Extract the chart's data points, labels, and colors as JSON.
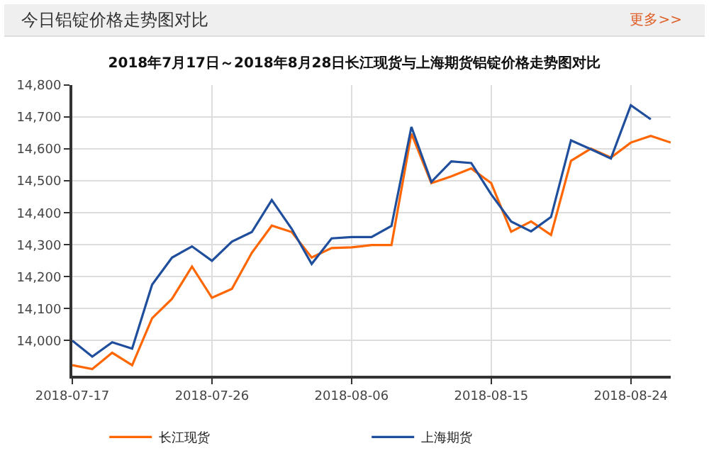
{
  "chart_data": {
    "type": "line",
    "title": "今日铝锭价格走势图对比",
    "subtitle": "2018年7月17日～2018年8月28日长江现货与上海期货铝锭价格走势图对比",
    "annotations": [
      "更多>>"
    ],
    "categories": [
      "2018-07-17",
      null,
      null,
      null,
      null,
      null,
      null,
      "2018-07-26",
      null,
      null,
      null,
      null,
      null,
      null,
      "2018-08-06",
      null,
      null,
      null,
      null,
      null,
      null,
      "2018-08-15",
      null,
      null,
      null,
      null,
      null,
      null,
      "2018-08-24",
      null,
      null
    ],
    "series": [
      {
        "name": "长江现货",
        "color": "#ff6600",
        "values": [
          13923,
          13911,
          13962,
          13923,
          14070,
          14131,
          14232,
          14134,
          14162,
          14275,
          14360,
          14340,
          14260,
          14290,
          14292,
          14299,
          14299,
          14648,
          14493,
          14514,
          14539,
          14493,
          14341,
          14373,
          14331,
          14563,
          14601,
          14573,
          14620,
          14641,
          14620
        ]
      },
      {
        "name": "上海期货",
        "color": "#1f4e9c",
        "values": [
          14000,
          13950,
          13995,
          13975,
          14175,
          14260,
          14295,
          14250,
          14310,
          14340,
          14440,
          14350,
          14240,
          14320,
          14324,
          14324,
          14359,
          14669,
          14497,
          14561,
          14556,
          14458,
          14373,
          14342,
          14387,
          14627,
          14599,
          14570,
          14737,
          14693,
          null
        ]
      }
    ],
    "ylim": [
      13890,
      14800
    ],
    "yticks": [
      {
        "value": 14000,
        "label": "14,000"
      },
      {
        "value": 14100,
        "label": "14,100"
      },
      {
        "value": 14200,
        "label": "14,200"
      },
      {
        "value": 14300,
        "label": "14,300"
      },
      {
        "value": 14400,
        "label": "14,400"
      },
      {
        "value": 14500,
        "label": "14,500"
      },
      {
        "value": 14600,
        "label": "14,600"
      },
      {
        "value": 14700,
        "label": "14,700"
      },
      {
        "value": 14800,
        "label": "14,800"
      }
    ],
    "grid": true,
    "legend": "bottom",
    "marker": "none",
    "line_style": "solid"
  }
}
